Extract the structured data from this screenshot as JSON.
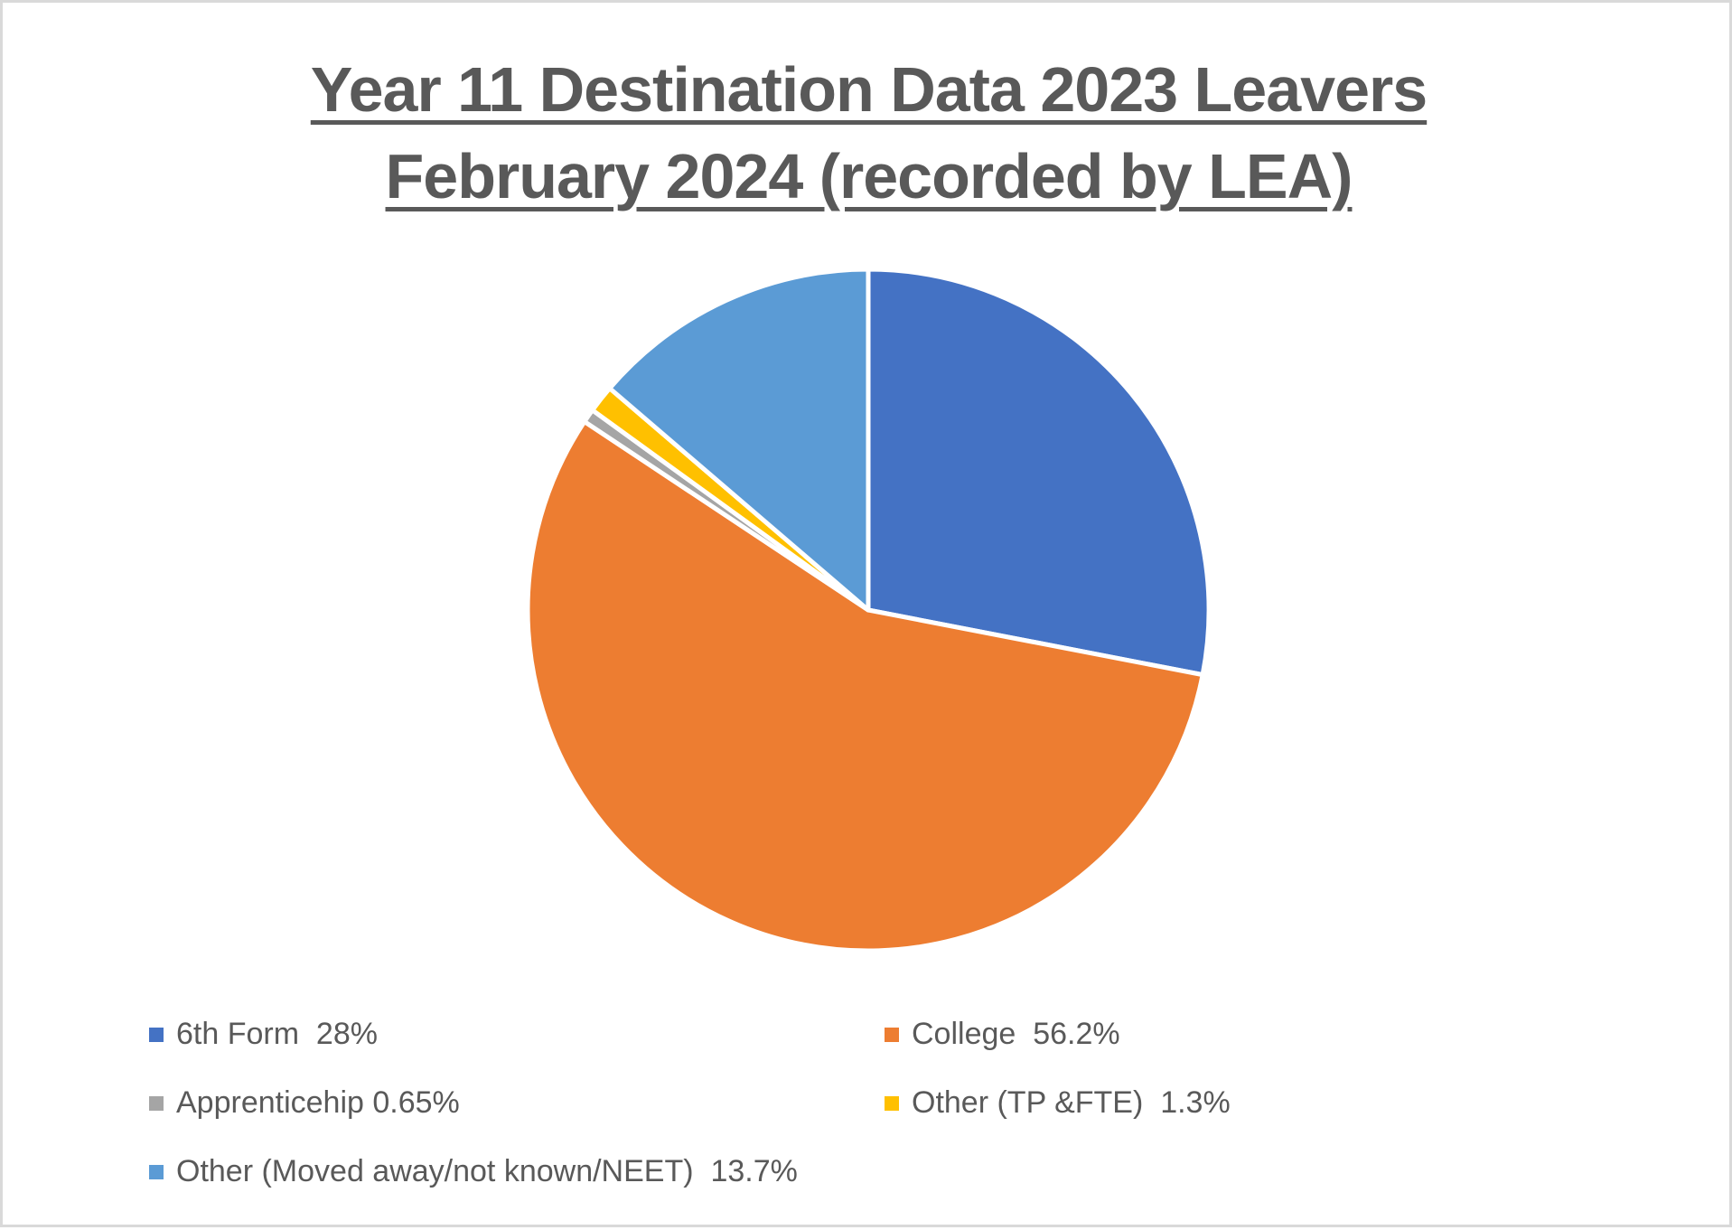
{
  "title": {
    "line1": "Year 11 Destination Data 2023 Leavers",
    "line2": "February 2024 (recorded by LEA)"
  },
  "legend": {
    "items": [
      {
        "label": "6th Form  28%",
        "color": "#4472c4"
      },
      {
        "label": "College  56.2%",
        "color": "#ed7d31"
      },
      {
        "label": "Apprenticehip 0.65%",
        "color": "#a5a5a5"
      },
      {
        "label": "Other (TP &FTE)  1.3%",
        "color": "#ffc000"
      },
      {
        "label": "Other (Moved away/not known/NEET)  13.7%",
        "color": "#5b9bd5"
      }
    ]
  },
  "chart_data": {
    "type": "pie",
    "title": "Year 11 Destination Data 2023 Leavers February 2024 (recorded by LEA)",
    "categories": [
      "6th Form",
      "College",
      "Apprenticehip",
      "Other (TP &FTE)",
      "Other (Moved away/not known/NEET)"
    ],
    "values": [
      28,
      56.2,
      0.65,
      1.3,
      13.7
    ],
    "unit": "%",
    "colors": [
      "#4472c4",
      "#ed7d31",
      "#a5a5a5",
      "#ffc000",
      "#5b9bd5"
    ],
    "start_angle": "12 o'clock, clockwise",
    "legend_position": "bottom",
    "grid": false
  }
}
